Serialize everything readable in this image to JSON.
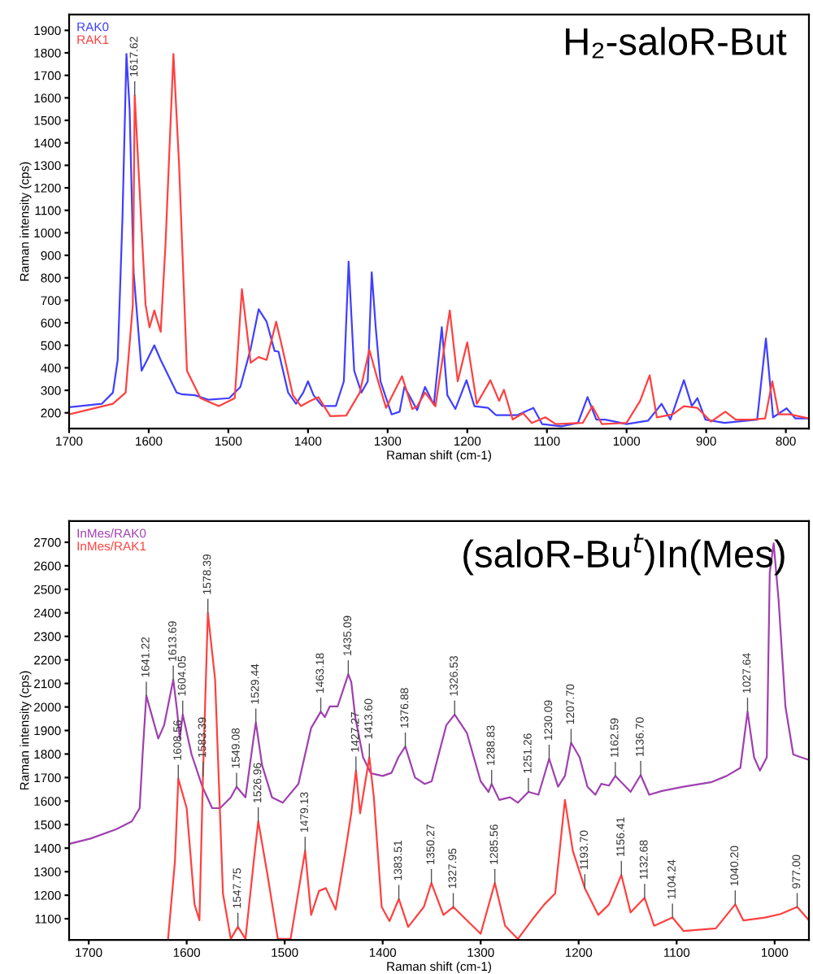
{
  "chart_data": [
    {
      "type": "line",
      "title": "H₂-saloR-But",
      "xlabel": "Raman shift (cm-1)",
      "ylabel": "Raman intensity (cps)",
      "legend": "top left",
      "xlim": [
        1700,
        771
      ],
      "xticks": [
        1700,
        1600,
        1500,
        1400,
        1300,
        1200,
        1100,
        1000,
        900,
        800
      ],
      "ylim": [
        130,
        1970
      ],
      "yticks": [
        200,
        300,
        400,
        500,
        600,
        700,
        800,
        900,
        1000,
        1100,
        1200,
        1300,
        1400,
        1500,
        1600,
        1700,
        1800,
        1900
      ],
      "series": [
        {
          "name": "RAK0",
          "color": "#4040ff",
          "x": [
            1700,
            1659,
            1645,
            1639,
            1633,
            1628,
            1624,
            1619,
            1609,
            1602,
            1593,
            1585,
            1565,
            1559,
            1542,
            1525,
            1499,
            1485,
            1472,
            1462,
            1452,
            1442,
            1437,
            1425,
            1415,
            1406,
            1400,
            1393,
            1382,
            1365,
            1355,
            1349,
            1342,
            1333,
            1325,
            1320,
            1315,
            1309,
            1295,
            1285,
            1279,
            1273,
            1263,
            1253,
            1242,
            1232,
            1225,
            1215,
            1201,
            1191,
            1174,
            1164,
            1137,
            1117,
            1106,
            1082,
            1061,
            1049,
            1038,
            1027,
            1000,
            973,
            956,
            945,
            928,
            918,
            911,
            901,
            877,
            836,
            825,
            816,
            799,
            788,
            771
          ],
          "values": [
            225,
            240,
            290,
            435,
            1065,
            1795,
            1550,
            825,
            387,
            435,
            500,
            435,
            290,
            283,
            278,
            258,
            265,
            315,
            485,
            660,
            605,
            475,
            472,
            290,
            240,
            290,
            340,
            278,
            230,
            230,
            340,
            872,
            387,
            290,
            340,
            825,
            580,
            340,
            193,
            205,
            315,
            278,
            212,
            315,
            236,
            581,
            278,
            217,
            345,
            229,
            222,
            190,
            190,
            222,
            150,
            140,
            155,
            270,
            170,
            170,
            150,
            165,
            240,
            170,
            345,
            230,
            265,
            170,
            155,
            170,
            530,
            180,
            220,
            175,
            175
          ]
        },
        {
          "name": "RAK1",
          "color": "#ff4040",
          "x": [
            1700,
            1645,
            1629,
            1620,
            1617.62,
            1604,
            1599,
            1593,
            1585,
            1579,
            1569,
            1562,
            1552,
            1535,
            1512,
            1492,
            1483,
            1472,
            1462,
            1452,
            1440,
            1432,
            1419,
            1409,
            1397,
            1387,
            1372,
            1352,
            1335,
            1323,
            1312,
            1302,
            1282,
            1269,
            1263,
            1253,
            1240,
            1222,
            1212,
            1200,
            1188,
            1171,
            1160,
            1154,
            1143,
            1130,
            1119,
            1102,
            1089,
            1055,
            1043,
            1031,
            1000,
            983,
            971,
            962,
            942,
            928,
            911,
            894,
            876,
            863,
            843,
            826,
            817,
            809,
            795,
            771
          ],
          "values": [
            193,
            240,
            290,
            680,
            1612,
            680,
            580,
            655,
            560,
            945,
            1795,
            1310,
            387,
            265,
            230,
            265,
            750,
            423,
            448,
            435,
            605,
            485,
            278,
            230,
            253,
            270,
            185,
            188,
            290,
            480,
            340,
            222,
            363,
            217,
            229,
            290,
            229,
            655,
            340,
            513,
            240,
            345,
            253,
            302,
            170,
            198,
            155,
            180,
            150,
            155,
            229,
            150,
            155,
            253,
            367,
            180,
            193,
            229,
            222,
            161,
            205,
            170,
            170,
            175,
            340,
            193,
            193,
            175
          ]
        }
      ],
      "annotations": [
        {
          "text": "1617.62",
          "x": 1617.62,
          "y": 1612
        }
      ]
    },
    {
      "type": "line",
      "title": "(saloR-Bu$^{t}$)In(Mes)",
      "xlabel": "Raman shift (cm-1)",
      "ylabel": "Raman intensity (cps)",
      "legend": "top left",
      "xlim": [
        1720,
        965
      ],
      "xticks": [
        1700,
        1600,
        1500,
        1400,
        1300,
        1200,
        1100,
        1000
      ],
      "ylim": [
        1010,
        2790
      ],
      "yticks": [
        1100,
        1200,
        1300,
        1400,
        1500,
        1600,
        1700,
        1800,
        1900,
        2000,
        2100,
        2200,
        2300,
        2400,
        2500,
        2600,
        2700
      ],
      "series": [
        {
          "name": "InMes/RAK0",
          "color": "#a040b0",
          "x": [
            1720,
            1698,
            1672,
            1656,
            1648,
            1645,
            1641.22,
            1629,
            1623,
            1613.69,
            1610,
            1607,
            1604.05,
            1595,
            1584,
            1574,
            1566,
            1555,
            1549.08,
            1540,
            1532,
            1529.44,
            1523,
            1513,
            1502,
            1486,
            1473,
            1463.18,
            1459,
            1454,
            1446,
            1435.09,
            1432,
            1428,
            1420,
            1412,
            1400,
            1391,
            1384,
            1376.88,
            1367,
            1357,
            1350,
            1335,
            1326.53,
            1314,
            1300,
            1292,
            1288.83,
            1281,
            1270,
            1262,
            1251.26,
            1241,
            1230.09,
            1221,
            1214,
            1207.7,
            1199,
            1191,
            1183,
            1177,
            1169,
            1162.59,
            1147,
            1136.7,
            1128,
            1115,
            1093,
            1065,
            1049,
            1035,
            1027.64,
            1021,
            1015,
            1008,
            1005,
            1001,
            996,
            989,
            981,
            973,
            965
          ],
          "values": [
            1418,
            1441,
            1480,
            1514,
            1570,
            1798,
            2048,
            1866,
            1923,
            2116,
            1991,
            1866,
            1968,
            1798,
            1661,
            1570,
            1570,
            1616,
            1661,
            1616,
            1860,
            1934,
            1752,
            1616,
            1593,
            1673,
            1911,
            1980,
            1957,
            2002,
            2002,
            2139,
            2105,
            1957,
            1786,
            1718,
            1707,
            1720,
            1786,
            1832,
            1700,
            1673,
            1684,
            1923,
            1968,
            1889,
            1684,
            1639,
            1673,
            1605,
            1616,
            1593,
            1639,
            1627,
            1780,
            1661,
            1707,
            1848,
            1786,
            1661,
            1627,
            1673,
            1666,
            1707,
            1639,
            1711,
            1627,
            1643,
            1661,
            1680,
            1707,
            1741,
            1980,
            1786,
            1730,
            1786,
            2570,
            2695,
            2457,
            2002,
            1798,
            1786,
            1775
          ]
        },
        {
          "name": "InMes/RAK1",
          "color": "#ff4040",
          "x": [
            1619,
            1612,
            1608.56,
            1600,
            1592,
            1587,
            1583.39,
            1578.39,
            1571,
            1563,
            1555,
            1547.75,
            1540,
            1531,
            1526.96,
            1518,
            1507,
            1494,
            1479.13,
            1473,
            1465,
            1458,
            1448,
            1438,
            1432,
            1427.27,
            1423,
            1413.6,
            1409,
            1401,
            1393,
            1383.51,
            1374,
            1358,
            1350.27,
            1338,
            1327.95,
            1314,
            1300,
            1285.56,
            1275,
            1262,
            1248,
            1235,
            1224,
            1214,
            1206,
            1193.7,
            1180,
            1169,
            1156.41,
            1147,
            1132.68,
            1123,
            1104.24,
            1093,
            1060,
            1040.2,
            1032,
            1010,
            994,
            977.0,
            965
          ],
          "values": [
            1014,
            1343,
            1695,
            1570,
            1161,
            1093,
            1707,
            2400,
            2116,
            1207,
            1014,
            1066,
            1014,
            1366,
            1514,
            1298,
            1014,
            1014,
            1389,
            1116,
            1218,
            1230,
            1139,
            1389,
            1550,
            1730,
            1548,
            1786,
            1616,
            1150,
            1090,
            1184,
            1065,
            1150,
            1252,
            1116,
            1150,
            1093,
            1036,
            1252,
            1070,
            1014,
            1093,
            1161,
            1207,
            1605,
            1389,
            1230,
            1116,
            1161,
            1286,
            1127,
            1189,
            1070,
            1105,
            1048,
            1059,
            1161,
            1093,
            1105,
            1120,
            1150,
            1093
          ]
        }
      ],
      "annotations": [
        {
          "text": "1641.22",
          "x": 1641.22,
          "y": 2048
        },
        {
          "text": "1613.69",
          "x": 1613.69,
          "y": 2116
        },
        {
          "text": "1608.56",
          "x": 1608.56,
          "y": 1695
        },
        {
          "text": "1604.05",
          "x": 1604.05,
          "y": 1968
        },
        {
          "text": "1583.39",
          "x": 1583.39,
          "y": 1707
        },
        {
          "text": "1578.39",
          "x": 1578.39,
          "y": 2400
        },
        {
          "text": "1547.75",
          "x": 1547.75,
          "y": 1066
        },
        {
          "text": "1549.08",
          "x": 1549.08,
          "y": 1661
        },
        {
          "text": "1529.44",
          "x": 1529.44,
          "y": 1934
        },
        {
          "text": "1526.96",
          "x": 1526.96,
          "y": 1514
        },
        {
          "text": "1479.13",
          "x": 1479.13,
          "y": 1389
        },
        {
          "text": "1463.18",
          "x": 1463.18,
          "y": 1980
        },
        {
          "text": "1435.09",
          "x": 1435.09,
          "y": 2139
        },
        {
          "text": "1427.27",
          "x": 1427.27,
          "y": 1730
        },
        {
          "text": "1413.60",
          "x": 1413.6,
          "y": 1786
        },
        {
          "text": "1376.88",
          "x": 1376.88,
          "y": 1832
        },
        {
          "text": "1383.51",
          "x": 1383.51,
          "y": 1184
        },
        {
          "text": "1350.27",
          "x": 1350.27,
          "y": 1252
        },
        {
          "text": "1326.53",
          "x": 1326.53,
          "y": 1968
        },
        {
          "text": "1327.95",
          "x": 1327.95,
          "y": 1150
        },
        {
          "text": "1288.83",
          "x": 1288.83,
          "y": 1673
        },
        {
          "text": "1285.56",
          "x": 1285.56,
          "y": 1252
        },
        {
          "text": "1251.26",
          "x": 1251.26,
          "y": 1639
        },
        {
          "text": "1230.09",
          "x": 1230.09,
          "y": 1780
        },
        {
          "text": "1207.70",
          "x": 1207.7,
          "y": 1848
        },
        {
          "text": "1193.70",
          "x": 1193.7,
          "y": 1230
        },
        {
          "text": "1162.59",
          "x": 1162.59,
          "y": 1707
        },
        {
          "text": "1156.41",
          "x": 1156.41,
          "y": 1286
        },
        {
          "text": "1136.70",
          "x": 1136.7,
          "y": 1711
        },
        {
          "text": "1132.68",
          "x": 1132.68,
          "y": 1189
        },
        {
          "text": "1104.24",
          "x": 1104.24,
          "y": 1105
        },
        {
          "text": "1040.20",
          "x": 1040.2,
          "y": 1161
        },
        {
          "text": "1027.64",
          "x": 1027.64,
          "y": 1980
        },
        {
          "text": "977.00",
          "x": 977.0,
          "y": 1150
        }
      ]
    }
  ]
}
